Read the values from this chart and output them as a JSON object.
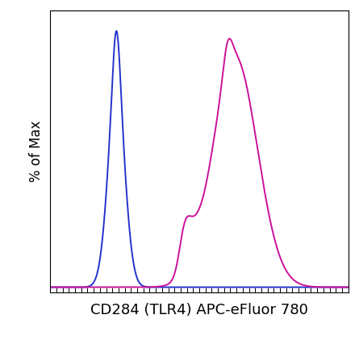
{
  "title": "",
  "xlabel": "CD284 (TLR4) APC-eFluor 780",
  "ylabel": "% of Max",
  "xlabel_fontsize": 13,
  "ylabel_fontsize": 12,
  "blue_color": "#2233CC",
  "magenta_color": "#CC1199",
  "background_color": "#ffffff",
  "line_width": 1.4,
  "xlim": [
    0.0,
    1.0
  ],
  "ylim": [
    -0.02,
    1.08
  ],
  "n_xticks": 48
}
